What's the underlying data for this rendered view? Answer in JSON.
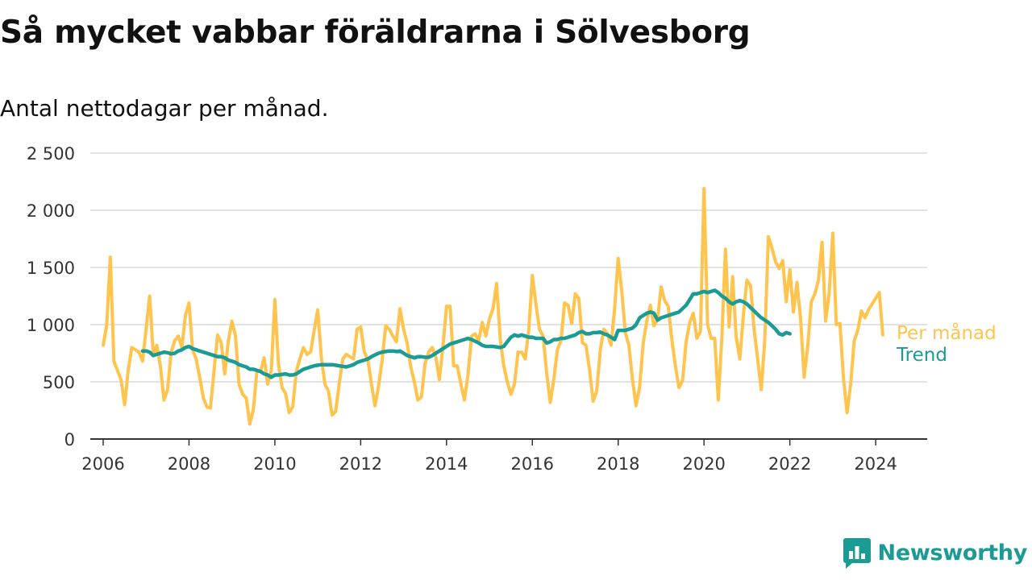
{
  "chart_data": {
    "type": "line",
    "title": "Så mycket vabbar föräldrarna i Sölvesborg",
    "subtitle": "Antal nettodagar per månad.",
    "xlabel": "",
    "ylabel": "",
    "xlim": [
      2005.7,
      2025.2
    ],
    "ylim": [
      0,
      2500
    ],
    "x_ticks": [
      2006,
      2008,
      2010,
      2012,
      2014,
      2016,
      2018,
      2020,
      2022,
      2024
    ],
    "x_tick_labels": [
      "2006",
      "2008",
      "2010",
      "2012",
      "2014",
      "2016",
      "2018",
      "2020",
      "2022",
      "2024"
    ],
    "y_ticks": [
      0,
      500,
      1000,
      1500,
      2000,
      2500
    ],
    "y_tick_labels": [
      "0",
      "500",
      "1 000",
      "1 500",
      "2 000",
      "2 500"
    ],
    "grid": true,
    "series": [
      {
        "name": "Per månad",
        "color": "#ffc44d",
        "start": [
          2006,
          1
        ],
        "values": [
          820,
          1000,
          1590,
          680,
          600,
          520,
          300,
          600,
          800,
          780,
          760,
          680,
          960,
          1250,
          740,
          820,
          640,
          340,
          430,
          760,
          860,
          900,
          800,
          1080,
          1190,
          780,
          700,
          540,
          360,
          280,
          270,
          600,
          910,
          840,
          570,
          860,
          1030,
          900,
          480,
          390,
          360,
          130,
          260,
          600,
          590,
          710,
          480,
          600,
          1220,
          660,
          450,
          400,
          230,
          280,
          590,
          700,
          800,
          740,
          760,
          950,
          1130,
          710,
          480,
          420,
          210,
          240,
          480,
          700,
          740,
          720,
          700,
          960,
          980,
          760,
          700,
          480,
          290,
          460,
          690,
          990,
          960,
          900,
          850,
          1140,
          960,
          840,
          630,
          500,
          340,
          370,
          660,
          760,
          800,
          720,
          520,
          810,
          1160,
          1160,
          640,
          640,
          480,
          340,
          560,
          900,
          920,
          860,
          1020,
          900,
          1050,
          1140,
          1360,
          880,
          640,
          500,
          390,
          480,
          760,
          760,
          700,
          950,
          1430,
          1180,
          960,
          900,
          580,
          320,
          520,
          780,
          860,
          1190,
          1170,
          1010,
          1270,
          1230,
          840,
          820,
          600,
          330,
          420,
          780,
          960,
          920,
          820,
          1140,
          1580,
          1290,
          930,
          820,
          520,
          290,
          460,
          840,
          1030,
          1170,
          990,
          1040,
          1330,
          1210,
          1160,
          870,
          640,
          450,
          510,
          850,
          1020,
          1100,
          880,
          940,
          2190,
          1000,
          880,
          880,
          340,
          900,
          1660,
          980,
          1420,
          890,
          700,
          1080,
          1390,
          1340,
          960,
          700,
          430,
          870,
          1770,
          1670,
          1550,
          1490,
          1560,
          1200,
          1480,
          1110,
          1370,
          1050,
          540,
          810,
          1200,
          1270,
          1390,
          1720,
          1030,
          1280,
          1800,
          1000,
          1010,
          530,
          230,
          480,
          860,
          950,
          1120,
          1060,
          1130,
          1180,
          1230,
          1280,
          910
        ]
      },
      {
        "name": "Trend",
        "color": "#1a9b94",
        "start": [
          2006,
          12
        ],
        "values": [
          770,
          770,
          760,
          730,
          740,
          750,
          760,
          755,
          745,
          750,
          770,
          780,
          800,
          810,
          790,
          780,
          770,
          760,
          750,
          740,
          730,
          720,
          720,
          710,
          690,
          680,
          670,
          650,
          640,
          630,
          610,
          610,
          600,
          590,
          570,
          560,
          540,
          560,
          560,
          565,
          570,
          560,
          560,
          570,
          590,
          610,
          620,
          630,
          640,
          645,
          650,
          650,
          650,
          650,
          645,
          640,
          635,
          630,
          640,
          650,
          670,
          680,
          690,
          700,
          720,
          735,
          750,
          760,
          765,
          770,
          770,
          765,
          770,
          750,
          730,
          720,
          710,
          720,
          720,
          715,
          715,
          730,
          750,
          770,
          790,
          810,
          830,
          840,
          850,
          860,
          870,
          880,
          870,
          855,
          840,
          820,
          810,
          810,
          810,
          805,
          800,
          810,
          850,
          890,
          910,
          900,
          910,
          900,
          890,
          890,
          880,
          880,
          880,
          840,
          850,
          870,
          870,
          880,
          880,
          890,
          900,
          910,
          930,
          940,
          920,
          920,
          930,
          930,
          935,
          920,
          910,
          890,
          870,
          950,
          950,
          950,
          960,
          970,
          1000,
          1060,
          1080,
          1100,
          1110,
          1100,
          1040,
          1060,
          1070,
          1080,
          1090,
          1100,
          1110,
          1140,
          1170,
          1220,
          1270,
          1270,
          1280,
          1290,
          1280,
          1290,
          1300,
          1280,
          1250,
          1230,
          1200,
          1180,
          1200,
          1210,
          1200,
          1180,
          1150,
          1120,
          1090,
          1060,
          1040,
          1020,
          990,
          960,
          920,
          910,
          930,
          920
        ]
      }
    ],
    "legend": [
      {
        "label": "Per månad",
        "color": "#ffc44d"
      },
      {
        "label": "Trend",
        "color": "#1a9b94"
      }
    ]
  },
  "branding": {
    "name": "Newsworthy",
    "logo_icon": "newsworthy-logo-icon",
    "color": "#1a9b94"
  }
}
